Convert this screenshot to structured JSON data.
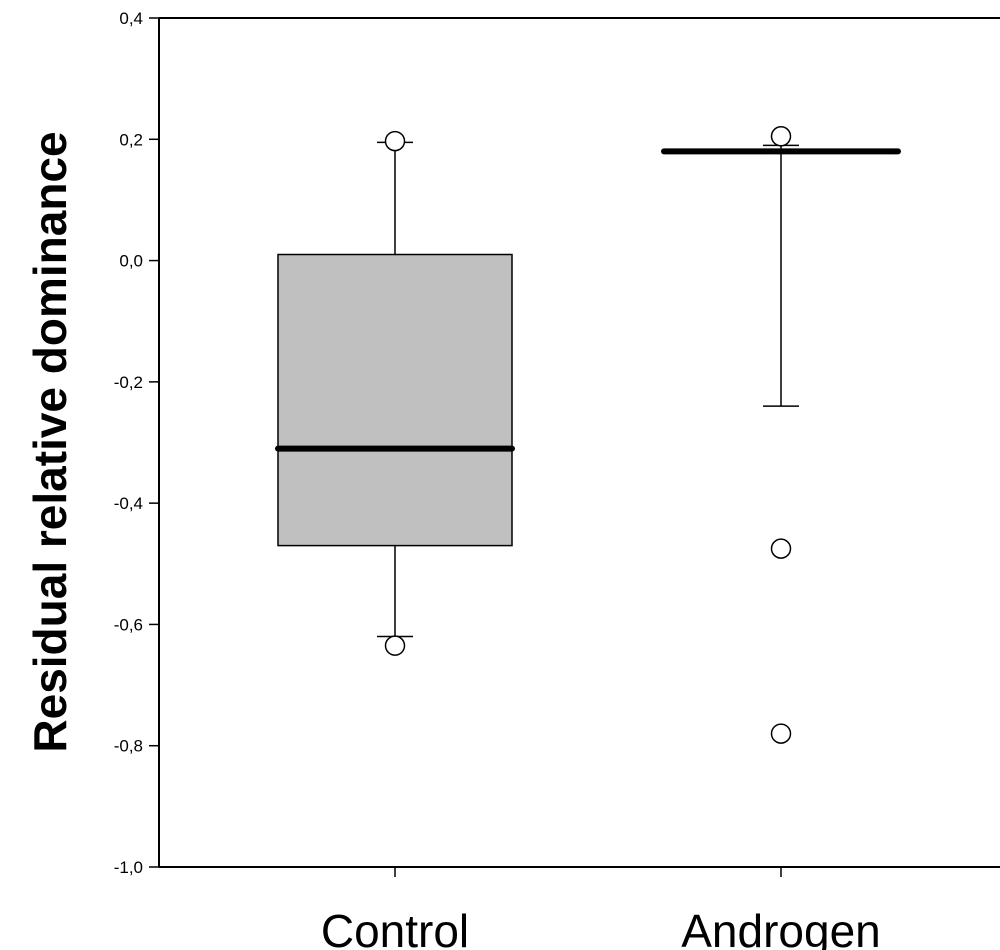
{
  "chart_data": {
    "type": "box",
    "title": "",
    "xlabel": "",
    "ylabel": "Residual relative dominance",
    "ylim": [
      -1.0,
      0.4
    ],
    "yticks": [
      -1.0,
      -0.8,
      -0.6,
      -0.4,
      -0.2,
      0.0,
      0.2,
      0.4
    ],
    "ytick_labels": [
      "-1,0",
      "-0,8",
      "-0,6",
      "-0,4",
      "-0,2",
      "0,0",
      "0,2",
      "0,4"
    ],
    "categories": [
      "Control",
      "Androgen"
    ],
    "boxes": [
      {
        "category": "Control",
        "whisker_low": -0.62,
        "q1": -0.47,
        "median": -0.31,
        "q3": 0.01,
        "whisker_high": 0.195,
        "outliers": [
          -0.635,
          0.197
        ]
      },
      {
        "category": "Androgen",
        "whisker_low": -0.24,
        "q1": 0.18,
        "median": 0.18,
        "q3": 0.18,
        "whisker_high": 0.19,
        "outliers": [
          -0.475,
          -0.78,
          0.205
        ]
      }
    ],
    "box_fill": "#c0c0c0",
    "grid": false,
    "legend": "none"
  }
}
